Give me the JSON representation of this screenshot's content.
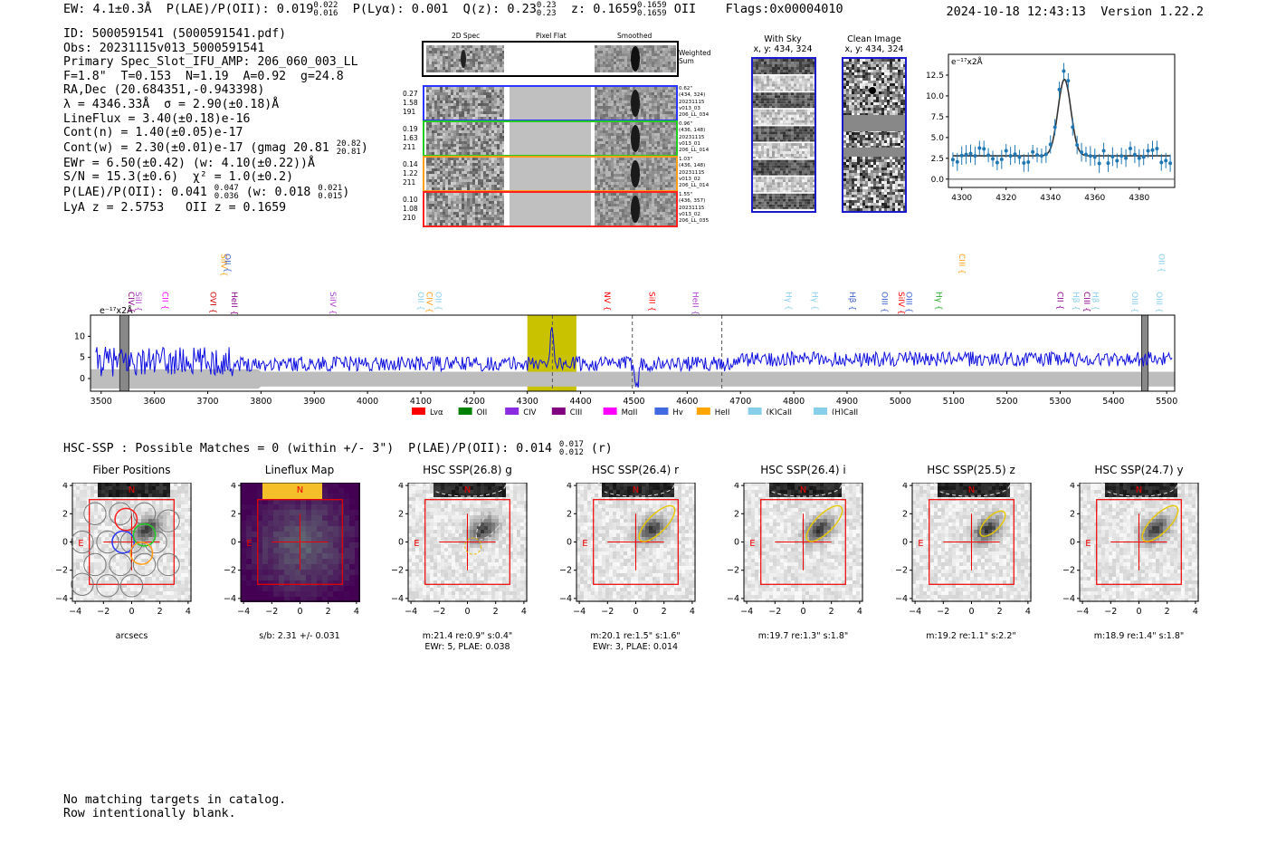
{
  "header": {
    "summary_line": "EW: 4.1±0.3Å  P(LAE)/P(OII): 0.019",
    "plae_hi": "0.022",
    "plae_lo": "0.016",
    "plya": "P(Lyα): 0.001",
    "qz": "Q(z): 0.23",
    "qz_hi": "0.23",
    "qz_lo": "0.23",
    "z": "z: 0.1659",
    "z_hi": "0.1659",
    "z_lo": "0.1659",
    "z_line": "OII",
    "flags": "Flags:0x00004010",
    "datetime": "2024-10-18 12:43:13",
    "version": "Version 1.22.2"
  },
  "info": {
    "id": "ID: 5000591541 (5000591541.pdf)",
    "obs": "Obs: 20231115v013_5000591541",
    "primary": "Primary Spec_Slot_IFU_AMP: 206_060_003_LL",
    "fiber": "F=1.8\"  T=0.153  N=1.19  A=0.92  g=24.8",
    "radec": "RA,Dec (20.684351,-0.943398)",
    "lambda": "λ = 4346.33Å  σ = 2.90(±0.18)Å",
    "lineflux": "LineFlux = 3.40(±0.18)e-16",
    "contn": "Cont(n) = 1.40(±0.05)e-17",
    "contw": "Cont(w) = 2.30(±0.01)e-17 (gmag 20.81",
    "gmag_hi": "20.82",
    "gmag_lo": "20.81",
    "ewr": "EWr = 6.50(±0.42) (w: 4.10(±0.22))Å",
    "sn": "S/N = 15.3(±0.6)  χ² = 1.0(±0.2)",
    "plae": "P(LAE)/P(OII): 0.041",
    "plae_hi": "0.047",
    "plae_lo": "0.036",
    "plae_w": "(w: 0.018",
    "plae_w_hi": "0.021",
    "plae_w_lo": "0.015",
    "lya": "LyA z = 2.5753   OII z = 0.1659"
  },
  "cutouts": {
    "col_titles": [
      "2D Spec",
      "Pixel Flat",
      "Smoothed"
    ],
    "weighted_label": "Weighted Sum",
    "rows": [
      {
        "nums": [
          "0.27",
          "1.58",
          "191"
        ],
        "side": [
          "0.62\"",
          "(434, 324)",
          "20231115",
          "v013_03",
          "206_LL_034"
        ],
        "color": "#2a36ff"
      },
      {
        "nums": [
          "0.19",
          "1.63",
          "211"
        ],
        "side": [
          "0.96\"",
          "(436, 148)",
          "20231115",
          "v013_01",
          "206_LL_014"
        ],
        "color": "#22cc22"
      },
      {
        "nums": [
          "0.14",
          "1.22",
          "211"
        ],
        "side": [
          "1.03\"",
          "(436, 148)",
          "20231115",
          "v013_02",
          "206_LL_014"
        ],
        "color": "#ff9f1a"
      },
      {
        "nums": [
          "0.10",
          "1.08",
          "210"
        ],
        "side": [
          "1.55\"",
          "(436, 357)",
          "20231115",
          "v013_02",
          "206_LL_035"
        ],
        "color": "#ff2020"
      }
    ],
    "with_sky": "With Sky",
    "with_sky_xy": "x, y: 434, 324",
    "clean": "Clean Image",
    "clean_xy": "x, y: 434, 324"
  },
  "line_fit": {
    "unit": "e⁻¹⁷x2Å",
    "yticks": [
      "0.0",
      "2.5",
      "5.0",
      "7.5",
      "10.0",
      "12.5"
    ],
    "xticks": [
      "4300",
      "4320",
      "4340",
      "4360",
      "4380"
    ]
  },
  "spectrum": {
    "unit": "e⁻¹⁷x2Å",
    "yticks": [
      "0",
      "5",
      "10"
    ],
    "xticks": [
      "3500",
      "3600",
      "3700",
      "3800",
      "3900",
      "4000",
      "4100",
      "4200",
      "4300",
      "4400",
      "4500",
      "4600",
      "4700",
      "4800",
      "4900",
      "5000",
      "5100",
      "5200",
      "5300",
      "5400",
      "5500"
    ],
    "lines_top": [
      {
        "label": "SiIV",
        "w": 3720,
        "color": "#ff9f1a"
      },
      {
        "label": "OII",
        "w": 3727,
        "color": "#3a5fcd"
      },
      {
        "label": "CIII",
        "w": 5106,
        "color": "#ff9f1a"
      },
      {
        "label": "OII",
        "w": 5480,
        "color": "#87ceeb"
      }
    ],
    "lines_mid": [
      {
        "label": "CIV",
        "w": 3546,
        "color": "#8b008b"
      },
      {
        "label": "SiII",
        "w": 3560,
        "color": "#b040d0"
      },
      {
        "label": "CII",
        "w": 3610,
        "color": "#ff00ff"
      },
      {
        "label": "OVI",
        "w": 3700,
        "color": "#cc0000"
      },
      {
        "label": "HeII",
        "w": 3740,
        "color": "#8b008b"
      },
      {
        "label": "SiIV",
        "w": 3925,
        "color": "#b040d0"
      },
      {
        "label": "OII",
        "w": 4090,
        "color": "#87ceeb"
      },
      {
        "label": "CIV",
        "w": 4106,
        "color": "#ff9f1a"
      },
      {
        "label": "OII",
        "w": 4123,
        "color": "#87ceeb"
      },
      {
        "label": "NV",
        "w": 4440,
        "color": "#ff0000"
      },
      {
        "label": "SiII",
        "w": 4524,
        "color": "#ff0000"
      },
      {
        "label": "HeII",
        "w": 4605,
        "color": "#b040d0"
      },
      {
        "label": "Hγ",
        "w": 4780,
        "color": "#87ceeb"
      },
      {
        "label": "Hγ",
        "w": 4830,
        "color": "#87ceeb"
      },
      {
        "label": "Hβ",
        "w": 4900,
        "color": "#3a5fcd"
      },
      {
        "label": "OIII",
        "w": 4960,
        "color": "#3a5fcd"
      },
      {
        "label": "SiIV",
        "w": 4992,
        "color": "#ff0000"
      },
      {
        "label": "OIII",
        "w": 5006,
        "color": "#3a5fcd"
      },
      {
        "label": "Hγ",
        "w": 5062,
        "color": "#22aa22"
      },
      {
        "label": "CII",
        "w": 5290,
        "color": "#8b008b"
      },
      {
        "label": "Hβ",
        "w": 5320,
        "color": "#87ceeb"
      },
      {
        "label": "CIII",
        "w": 5340,
        "color": "#8b008b"
      },
      {
        "label": "Hβ",
        "w": 5356,
        "color": "#87ceeb"
      },
      {
        "label": "OIII",
        "w": 5430,
        "color": "#87ceeb"
      },
      {
        "label": "OIII",
        "w": 5476,
        "color": "#87ceeb"
      }
    ],
    "legend": [
      {
        "label": "Lyα",
        "color": "#ff0000"
      },
      {
        "label": "OII",
        "color": "#008000"
      },
      {
        "label": "CIV",
        "color": "#8a2be2"
      },
      {
        "label": "CIII",
        "color": "#800080"
      },
      {
        "label": "MgII",
        "color": "#ff00ff"
      },
      {
        "label": "Hγ",
        "color": "#4169e1"
      },
      {
        "label": "HeII",
        "color": "#ffa500"
      },
      {
        "label": "(K)CaII",
        "color": "#87ceeb"
      },
      {
        "label": "(H)CaII",
        "color": "#87ceeb"
      }
    ]
  },
  "hsc": {
    "line": "HSC-SSP : Possible Matches = 0 (within +/- 3\")  P(LAE)/P(OII): 0.014",
    "hi": "0.017",
    "lo": "0.012",
    "band": "(r)",
    "panels": [
      {
        "title": "Fiber Positions",
        "cap1": "arcsecs",
        "cap2": ""
      },
      {
        "title": "Lineflux Map",
        "cap1": "s/b: 2.31 +/- 0.031",
        "cap2": ""
      },
      {
        "title": "HSC SSP(26.8) g",
        "cap1": "m:21.4  re:0.9\"  s:0.4\"",
        "cap2": "EWr: 5, PLAE: 0.038"
      },
      {
        "title": "HSC SSP(26.4) r",
        "cap1": "m:20.1  re:1.5\"  s:1.6\"",
        "cap2": "EWr: 3, PLAE: 0.014"
      },
      {
        "title": "HSC SSP(26.4) i",
        "cap1": "m:19.7  re:1.3\"  s:1.8\"",
        "cap2": ""
      },
      {
        "title": "HSC SSP(25.5) z",
        "cap1": "m:19.2  re:1.1\"  s:2.2\"",
        "cap2": ""
      },
      {
        "title": "HSC SSP(24.7) y",
        "cap1": "m:18.9  re:1.4\"  s:1.8\"",
        "cap2": ""
      }
    ],
    "ticks": [
      "4",
      "2",
      "0",
      "−2",
      "−4"
    ],
    "xticks": [
      "−4",
      "−2",
      "0",
      "2",
      "4"
    ],
    "north": "N",
    "east": "E"
  },
  "footer": {
    "line1": "No matching targets in catalog.",
    "line2": "Row intentionally blank."
  }
}
